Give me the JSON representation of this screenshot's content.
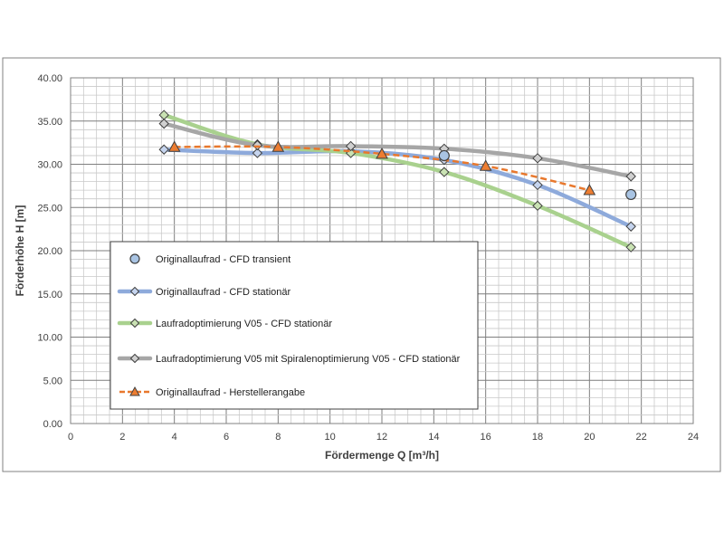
{
  "chart_data": {
    "type": "line",
    "title": "",
    "xlabel": "Fördermenge Q [m³/h]",
    "ylabel": "Förderhöhe H [m]",
    "xlim": [
      0,
      24
    ],
    "ylim": [
      0,
      40
    ],
    "x_ticks": [
      "0",
      "2",
      "4",
      "6",
      "8",
      "10",
      "12",
      "14",
      "16",
      "18",
      "20",
      "22",
      "24"
    ],
    "y_ticks": [
      "0.00",
      "5.00",
      "10.00",
      "15.00",
      "20.00",
      "25.00",
      "30.00",
      "35.00",
      "40.00"
    ],
    "grid": true,
    "legend_position": "lower-left inside plot",
    "series": [
      {
        "name": "Originallaufrad - CFD transient",
        "style": "markers",
        "marker": "circle",
        "color": "#a9c4e3",
        "edge_color": "#404040",
        "x": [
          14.4,
          21.6
        ],
        "y": [
          31.0,
          26.5
        ]
      },
      {
        "name": "Originallaufrad - CFD stationär",
        "style": "smooth-line",
        "marker": "diamond",
        "color": "#8eaadb",
        "marker_fill": "#c5d4ee",
        "x": [
          3.6,
          7.2,
          10.8,
          14.4,
          18.0,
          21.6
        ],
        "y": [
          31.7,
          31.3,
          31.5,
          30.5,
          27.6,
          22.8
        ]
      },
      {
        "name": "Laufradoptimierung V05 - CFD stationär",
        "style": "smooth-line",
        "marker": "diamond",
        "color": "#a9d18e",
        "marker_fill": "#c9e2b3",
        "x": [
          3.6,
          7.2,
          10.8,
          14.4,
          18.0,
          21.6
        ],
        "y": [
          35.7,
          32.3,
          31.3,
          29.1,
          25.2,
          20.4
        ]
      },
      {
        "name": "Laufradoptimierung V05 mit Spiralenoptimierung V05 - CFD stationär",
        "style": "smooth-line",
        "marker": "diamond",
        "color": "#a6a6a6",
        "marker_fill": "#d0d0d0",
        "x": [
          3.6,
          7.2,
          10.8,
          14.4,
          18.0,
          21.6
        ],
        "y": [
          34.7,
          32.2,
          32.1,
          31.8,
          30.7,
          28.6
        ]
      },
      {
        "name": "Originallaufrad - Herstellerangabe",
        "style": "dashed-line",
        "marker": "triangle",
        "color": "#e8782d",
        "marker_fill": "#ed7d31",
        "x": [
          4,
          8,
          12,
          16,
          20
        ],
        "y": [
          32.0,
          32.0,
          31.2,
          29.8,
          27.0
        ]
      }
    ]
  }
}
